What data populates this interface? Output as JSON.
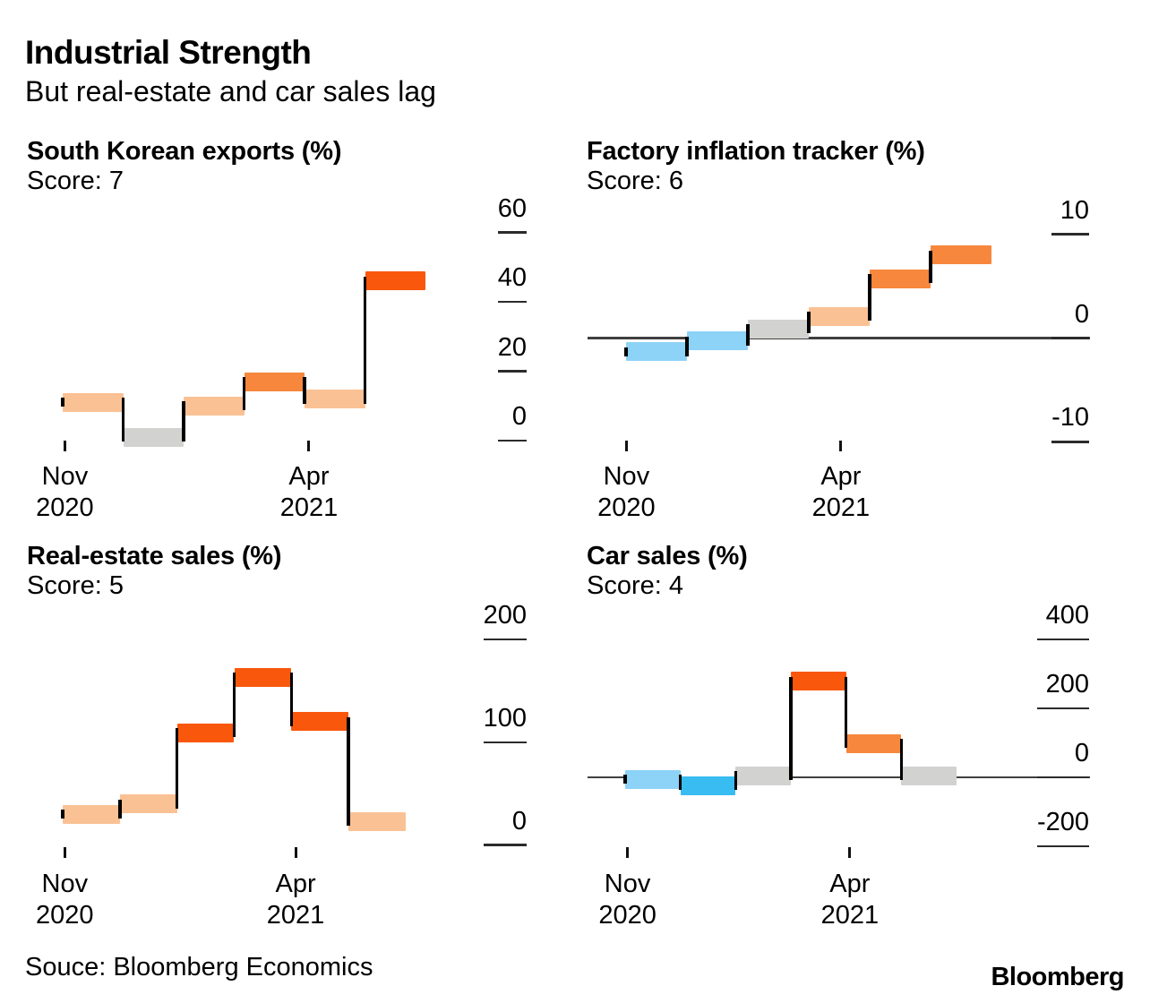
{
  "header": {
    "title": "Industrial Strength",
    "subtitle": "But real-estate and car sales lag"
  },
  "footer": {
    "source": "Souce: Bloomberg Economics",
    "brand": "Bloomberg"
  },
  "palette": {
    "orange_dark": "#F9570B",
    "orange_med": "#F7873C",
    "orange_light": "#FAC194",
    "gray": "#D2D2D0",
    "blue_light": "#8DD2F7",
    "blue_med": "#39BCF1",
    "connector": "#000000",
    "zero_line": "#404040",
    "tick": "#2B2B2B"
  },
  "chart_data": [
    {
      "type": "bar",
      "variant": "waterfall-step",
      "title": "South Korean exports (%)",
      "score_text": "Score: 7",
      "values": [
        11,
        1,
        10,
        17,
        12,
        46
      ],
      "bar_colors": [
        "orange_light",
        "gray",
        "orange_light",
        "orange_med",
        "orange_light",
        "orange_dark"
      ],
      "y_ticks": [
        0,
        20,
        40,
        60
      ],
      "ylim": [
        0,
        60
      ],
      "x_ticks": [
        {
          "lines": [
            "Nov",
            "2020"
          ],
          "frac": 0.006
        },
        {
          "lines": [
            "Apr",
            "2021"
          ],
          "frac": 0.679
        }
      ],
      "zero_axis_line": false,
      "grid": false,
      "axis_side": "right"
    },
    {
      "type": "bar",
      "variant": "waterfall-step",
      "title": "Factory inflation tracker (%)",
      "score_text": "Score: 6",
      "values": [
        -1.3,
        -0.3,
        0.9,
        2.1,
        5.7,
        8
      ],
      "bar_colors": [
        "blue_light",
        "blue_light",
        "gray",
        "orange_light",
        "orange_med",
        "orange_med"
      ],
      "y_ticks": [
        -10,
        0,
        10
      ],
      "ylim": [
        -10,
        10
      ],
      "x_ticks": [
        {
          "lines": [
            "Nov",
            "2020"
          ],
          "frac": 0.001
        },
        {
          "lines": [
            "Apr",
            "2021"
          ],
          "frac": 0.588
        }
      ],
      "zero_axis_line": true,
      "grid": false,
      "axis_side": "right"
    },
    {
      "type": "bar",
      "variant": "waterfall-step",
      "title": "Real-estate sales (%)",
      "score_text": "Score: 5",
      "values": [
        30,
        40,
        109,
        163,
        120,
        23
      ],
      "bar_colors": [
        "orange_light",
        "orange_light",
        "orange_dark",
        "orange_dark",
        "orange_dark",
        "orange_light"
      ],
      "y_ticks": [
        0,
        100,
        200
      ],
      "ylim": [
        0,
        200
      ],
      "x_ticks": [
        {
          "lines": [
            "Nov",
            "2020"
          ],
          "frac": 0.006
        },
        {
          "lines": [
            "Apr",
            "2021"
          ],
          "frac": 0.679
        }
      ],
      "zero_axis_line": false,
      "grid": false,
      "axis_side": "right"
    },
    {
      "type": "bar",
      "variant": "waterfall-step",
      "title": "Car sales (%)",
      "score_text": "Score: 4",
      "values": [
        -6,
        -24,
        4,
        279,
        98,
        4
      ],
      "bar_colors": [
        "blue_light",
        "blue_med",
        "gray",
        "orange_dark",
        "orange_med",
        "gray"
      ],
      "y_ticks": [
        -200,
        0,
        200,
        400
      ],
      "ylim": [
        -200,
        400
      ],
      "x_ticks": [
        {
          "lines": [
            "Nov",
            "2020"
          ],
          "frac": 0.007
        },
        {
          "lines": [
            "Apr",
            "2021"
          ],
          "frac": 0.678
        }
      ],
      "zero_axis_line": true,
      "grid": false,
      "axis_side": "right"
    }
  ]
}
